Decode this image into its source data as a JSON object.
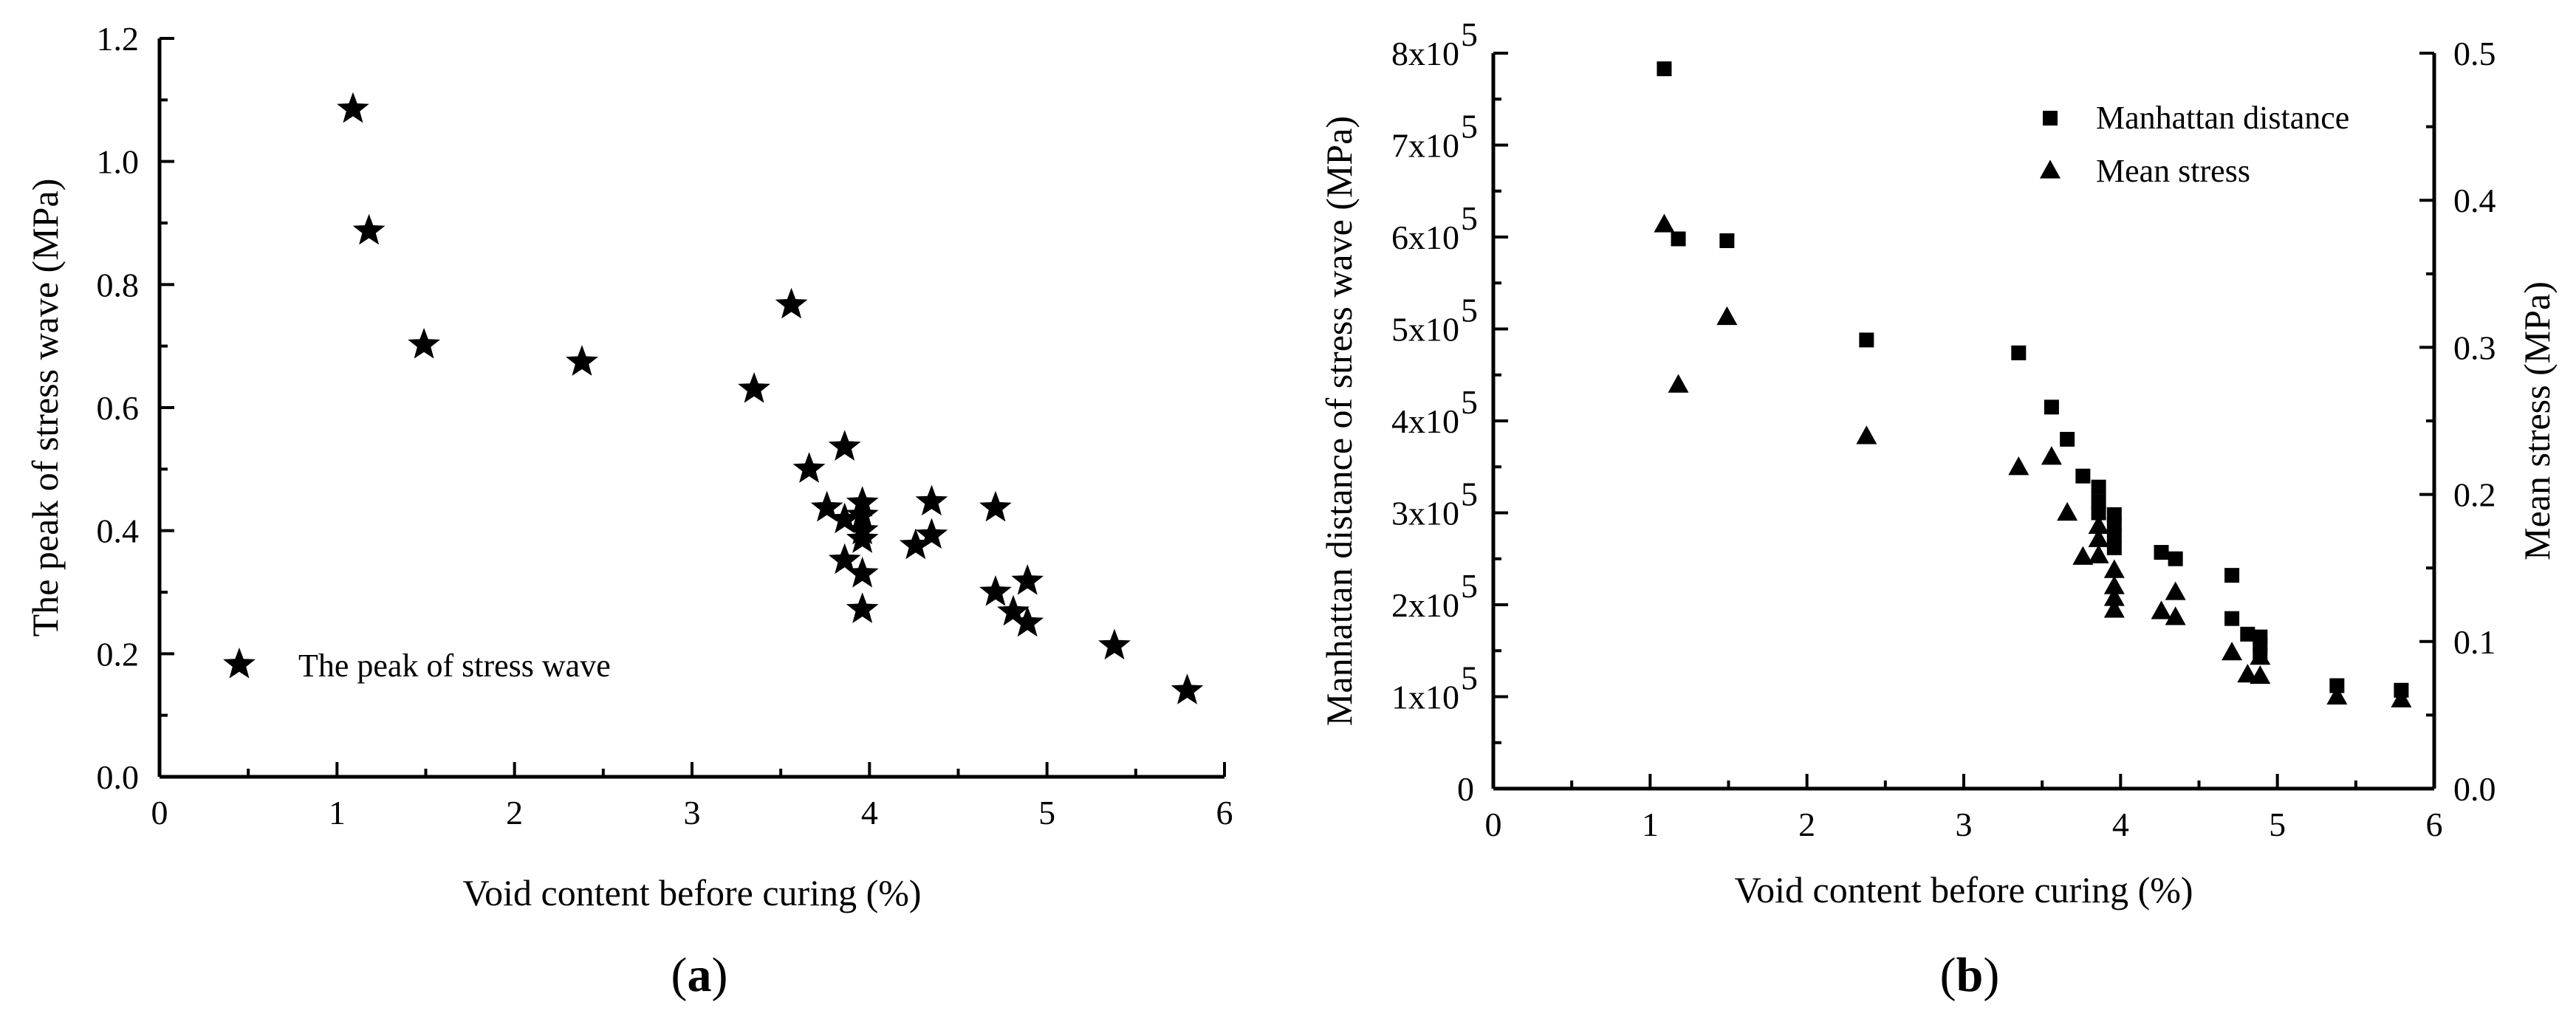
{
  "chart_data": [
    {
      "panel": "a",
      "panel_label": "(a)",
      "panel_letter": "a",
      "type": "scatter",
      "xlabel": "Void content before curing (%)",
      "ylabel": "The peak of stress wave (MPa)",
      "xlim": [
        0,
        6
      ],
      "ylim": [
        0,
        1.2
      ],
      "x_ticks": [
        "0",
        "1",
        "2",
        "3",
        "4",
        "5",
        "6"
      ],
      "y_ticks": [
        "0.0",
        "0.2",
        "0.4",
        "0.6",
        "0.8",
        "1.0",
        "1.2"
      ],
      "legend_position": "bottom-left",
      "series": [
        {
          "name": "The peak of stress wave",
          "marker": "star",
          "points": [
            [
              1.09,
              1.085
            ],
            [
              1.18,
              0.887
            ],
            [
              1.49,
              0.702
            ],
            [
              2.38,
              0.674
            ],
            [
              3.35,
              0.63
            ],
            [
              3.56,
              0.767
            ],
            [
              3.66,
              0.5
            ],
            [
              3.76,
              0.437
            ],
            [
              3.86,
              0.536
            ],
            [
              3.86,
              0.418
            ],
            [
              3.86,
              0.352
            ],
            [
              3.96,
              0.445
            ],
            [
              3.96,
              0.425
            ],
            [
              3.96,
              0.4
            ],
            [
              3.96,
              0.386
            ],
            [
              3.96,
              0.33
            ],
            [
              3.96,
              0.272
            ],
            [
              4.26,
              0.376
            ],
            [
              4.35,
              0.447
            ],
            [
              4.35,
              0.393
            ],
            [
              4.71,
              0.437
            ],
            [
              4.71,
              0.3
            ],
            [
              4.81,
              0.268
            ],
            [
              4.89,
              0.318
            ],
            [
              4.89,
              0.25
            ],
            [
              5.38,
              0.213
            ],
            [
              5.79,
              0.14
            ]
          ]
        }
      ]
    },
    {
      "panel": "b",
      "panel_label": "(b)",
      "panel_letter": "b",
      "type": "scatter",
      "xlabel": "Void content before curing (%)",
      "ylabel": "Manhattan distance of stress wave (MPa)",
      "ylabel_right": "Mean stress (MPa)",
      "xlim": [
        0,
        6
      ],
      "ylim": [
        0,
        800000
      ],
      "ylim_right": [
        0,
        0.5
      ],
      "x_ticks": [
        "0",
        "1",
        "2",
        "3",
        "4",
        "5",
        "6"
      ],
      "y_ticks": [
        "0",
        "1x10^5",
        "2x10^5",
        "3x10^5",
        "4x10^5",
        "5x10^5",
        "6x10^5",
        "7x10^5",
        "8x10^5"
      ],
      "y_tick_mantissas": [
        "1x10",
        "2x10",
        "3x10",
        "4x10",
        "5x10",
        "6x10",
        "7x10",
        "8x10"
      ],
      "y_tick_exponent": "5",
      "y_tick_zero": "0",
      "y_right_ticks": [
        "0.0",
        "0.1",
        "0.2",
        "0.3",
        "0.4",
        "0.5"
      ],
      "legend_position": "top-right",
      "series": [
        {
          "name": "Manhattan distance",
          "marker": "square",
          "axis": "left",
          "points": [
            [
              1.09,
              783000
            ],
            [
              1.18,
              598000
            ],
            [
              1.49,
              596000
            ],
            [
              2.38,
              488000
            ],
            [
              3.35,
              474000
            ],
            [
              3.56,
              415000
            ],
            [
              3.66,
              380000
            ],
            [
              3.76,
              340000
            ],
            [
              3.86,
              328000
            ],
            [
              3.86,
              312000
            ],
            [
              3.86,
              300000
            ],
            [
              3.96,
              298000
            ],
            [
              3.96,
              287000
            ],
            [
              3.96,
              275000
            ],
            [
              3.96,
              262000
            ],
            [
              4.26,
              257000
            ],
            [
              4.35,
              250000
            ],
            [
              4.71,
              232000
            ],
            [
              4.71,
              185000
            ],
            [
              4.81,
              168000
            ],
            [
              4.89,
              165000
            ],
            [
              4.89,
              157000
            ],
            [
              4.89,
              145000
            ],
            [
              5.38,
              112000
            ],
            [
              5.79,
              107000
            ]
          ]
        },
        {
          "name": "Mean stress",
          "marker": "triangle",
          "axis": "right",
          "points": [
            [
              1.09,
              0.383
            ],
            [
              1.18,
              0.274
            ],
            [
              1.49,
              0.32
            ],
            [
              2.38,
              0.239
            ],
            [
              3.35,
              0.218
            ],
            [
              3.56,
              0.225
            ],
            [
              3.66,
              0.187
            ],
            [
              3.76,
              0.157
            ],
            [
              3.86,
              0.178
            ],
            [
              3.86,
              0.169
            ],
            [
              3.86,
              0.158
            ],
            [
              3.96,
              0.148
            ],
            [
              3.96,
              0.137
            ],
            [
              3.96,
              0.129
            ],
            [
              3.96,
              0.121
            ],
            [
              4.26,
              0.12
            ],
            [
              4.35,
              0.133
            ],
            [
              4.35,
              0.116
            ],
            [
              4.71,
              0.092
            ],
            [
              4.81,
              0.077
            ],
            [
              4.89,
              0.089
            ],
            [
              4.89,
              0.076
            ],
            [
              5.38,
              0.062
            ],
            [
              5.79,
              0.06
            ]
          ]
        }
      ]
    }
  ]
}
